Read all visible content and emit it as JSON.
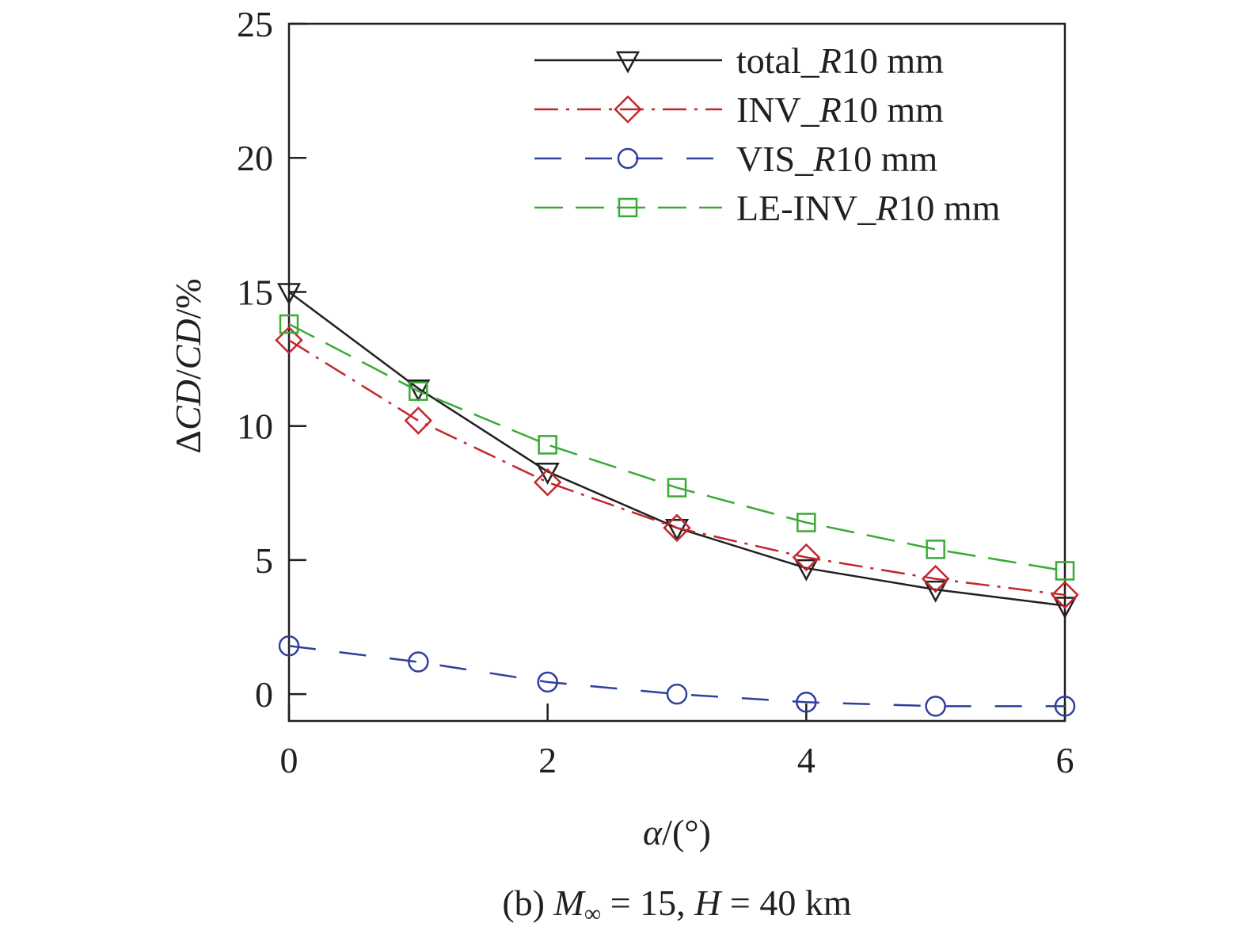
{
  "chart_data": {
    "type": "line",
    "caption": {
      "prefix": "(b) ",
      "m_symbol": "M",
      "m_sub": "∞",
      "mid": " = 15, ",
      "h_symbol": "H",
      "suffix": " = 40 km"
    },
    "xlabel": {
      "symbol": "α",
      "text": "/(°)"
    },
    "ylabel": {
      "delta": "Δ",
      "cd1": "CD",
      "slash": "/",
      "cd2": "CD",
      "unit": "/%"
    },
    "xlim": [
      0,
      6
    ],
    "ylim": [
      -1,
      25
    ],
    "xticks": [
      0,
      2,
      4,
      6
    ],
    "yticks": [
      0,
      5,
      10,
      15,
      20,
      25
    ],
    "x": [
      0,
      1,
      2,
      3,
      4,
      5,
      6
    ],
    "series": [
      {
        "name": "total_R10 mm",
        "legend": {
          "pre": "total_",
          "italic": "R",
          "post": "10 mm"
        },
        "color": "#231f20",
        "dash": "solid",
        "marker": "triangle-down",
        "values": [
          15.0,
          11.4,
          8.3,
          6.2,
          4.7,
          3.9,
          3.3
        ]
      },
      {
        "name": "INV_R10 mm",
        "legend": {
          "pre": "INV_",
          "italic": "R",
          "post": "10 mm"
        },
        "color": "#c1272d",
        "dash": "dashdot",
        "marker": "diamond",
        "values": [
          13.2,
          10.2,
          7.9,
          6.2,
          5.1,
          4.3,
          3.7
        ]
      },
      {
        "name": "VIS_R10 mm",
        "legend": {
          "pre": "VIS_",
          "italic": "R",
          "post": "10 mm"
        },
        "color": "#2e3f9e",
        "dash": "longdash",
        "marker": "circle",
        "values": [
          1.8,
          1.2,
          0.45,
          0.0,
          -0.3,
          -0.45,
          -0.45
        ]
      },
      {
        "name": "LE-INV_R10 mm",
        "legend": {
          "pre": "LE-INV_",
          "italic": "R",
          "post": "10 mm"
        },
        "color": "#3aaa35",
        "dash": "dashed",
        "marker": "square",
        "values": [
          13.8,
          11.3,
          9.3,
          7.7,
          6.4,
          5.4,
          4.6
        ]
      }
    ],
    "legend_position": "top-right",
    "grid": false
  }
}
